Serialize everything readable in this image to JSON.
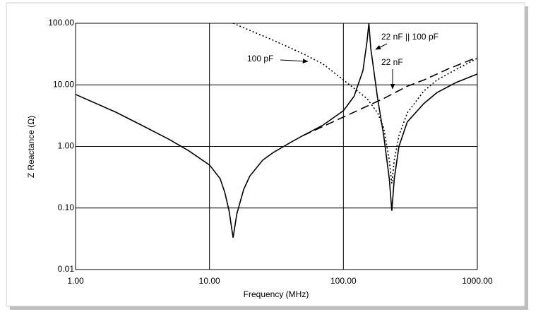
{
  "chart_data": {
    "type": "line",
    "xlabel": "Frequency (MHz)",
    "ylabel": "Z Reactance (Ω)",
    "xscale": "log",
    "yscale": "log",
    "grid": true,
    "xlim": [
      1,
      1000
    ],
    "ylim": [
      0.01,
      100
    ],
    "xticks": [
      {
        "value": 1,
        "label": "1.00"
      },
      {
        "value": 10,
        "label": "10.00"
      },
      {
        "value": 100,
        "label": "100.00"
      },
      {
        "value": 1000,
        "label": "1000.00"
      }
    ],
    "yticks": [
      {
        "value": 0.01,
        "label": "0.01"
      },
      {
        "value": 0.1,
        "label": "0.10"
      },
      {
        "value": 1,
        "label": "1.00"
      },
      {
        "value": 10,
        "label": "10.00"
      },
      {
        "value": 100,
        "label": "100.00"
      }
    ],
    "series": [
      {
        "name": "22 nF || 100 pF",
        "color": "#000000",
        "line_style": "solid",
        "x": [
          1,
          2,
          3,
          5,
          7,
          10,
          12,
          13,
          14,
          15,
          16,
          18,
          20,
          25,
          30,
          40,
          50,
          70,
          100,
          120,
          140,
          150,
          155,
          160,
          180,
          200,
          220,
          230,
          240,
          260,
          300,
          400,
          500,
          700,
          1000
        ],
        "values": [
          7,
          3.6,
          2.3,
          1.3,
          0.85,
          0.5,
          0.3,
          0.18,
          0.09,
          0.033,
          0.08,
          0.2,
          0.33,
          0.6,
          0.8,
          1.15,
          1.5,
          2.2,
          3.8,
          6.5,
          17,
          50,
          100,
          40,
          6,
          1.5,
          0.3,
          0.09,
          0.3,
          1,
          2.5,
          5,
          7.5,
          11,
          15
        ]
      },
      {
        "name": "22 nF",
        "color": "#000000",
        "line_style": "dashed",
        "x": [
          50,
          100,
          200,
          300,
          400,
          600,
          1000
        ],
        "values": [
          1.5,
          3,
          6,
          9.5,
          12,
          18,
          28
        ]
      },
      {
        "name": "100 pF",
        "color": "#000000",
        "line_style": "dotted",
        "x": [
          15,
          30,
          50,
          70,
          100,
          150,
          180,
          200,
          220,
          230,
          240,
          260,
          300,
          400,
          500,
          700,
          1000
        ],
        "values": [
          100,
          53,
          32,
          22,
          12,
          6,
          3.5,
          2,
          0.6,
          0.25,
          0.6,
          1.5,
          3.5,
          8,
          12,
          18,
          27
        ]
      }
    ],
    "annotations": [
      "100 pF",
      "22 nF || 100 pF",
      "22 nF"
    ]
  }
}
